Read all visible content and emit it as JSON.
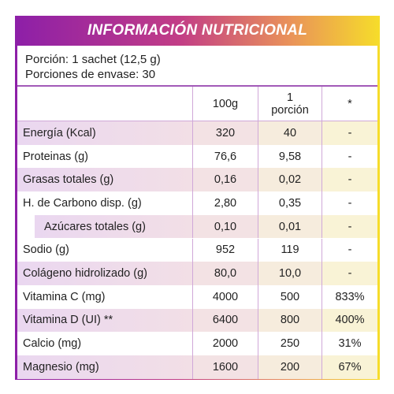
{
  "title": "INFORMACIÓN NUTRICIONAL",
  "portion_line1": "Porción: 1 sachet (12,5 g)",
  "portion_line2": "Porciones de envase: 30",
  "headers": [
    "",
    "100g",
    "1\nporción",
    "*"
  ],
  "rows": [
    [
      "Energía (Kcal)",
      "320",
      "40",
      "-"
    ],
    [
      "Proteinas (g)",
      "76,6",
      "9,58",
      "-"
    ],
    [
      "Grasas totales (g)",
      "0,16",
      "0,02",
      "-"
    ],
    [
      "H. de Carbono disp. (g)",
      "2,80",
      "0,35",
      "-"
    ],
    [
      "Azúcares totales (g)",
      "0,10",
      "0,01",
      "-"
    ],
    [
      "Sodio (g)",
      "952",
      "119",
      "-"
    ],
    [
      "Colágeno hidrolizado (g)",
      "80,0",
      "10,0",
      "-"
    ],
    [
      "Vitamina C (mg)",
      "4000",
      "500",
      "833%"
    ],
    [
      "Vitamina D (UI) **",
      "6400",
      "800",
      "400%"
    ],
    [
      "Calcio (mg)",
      "2000",
      "250",
      "31%"
    ],
    [
      "Magnesio (mg)",
      "1600",
      "200",
      "67%"
    ]
  ],
  "colors": {
    "gradient_start": "#8d1fa8",
    "gradient_end": "#f6dd2a"
  }
}
